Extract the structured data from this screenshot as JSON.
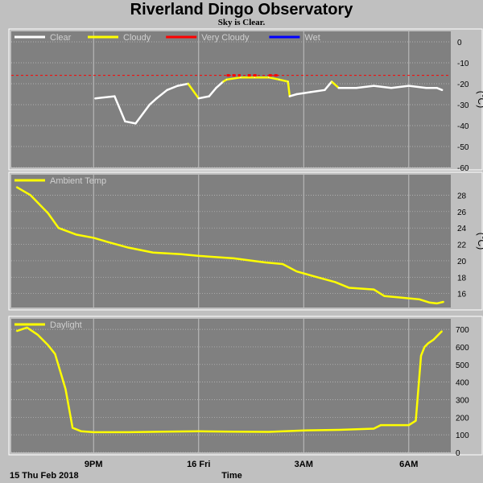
{
  "header": {
    "title": "Riverland Dingo Observatory",
    "subtitle": "Sky is Clear."
  },
  "footer": {
    "date_label": "15 Thu Feb 2018",
    "time_label": "Time"
  },
  "colors": {
    "background": "#c0c0c0",
    "plot_bg": "#808080",
    "grid": "#c0c0c0",
    "clear": "#ffffff",
    "cloudy": "#ffff00",
    "very_cloudy": "#ff0000",
    "wet": "#0000ff",
    "threshold": "#ff0000"
  },
  "chart_data": [
    {
      "type": "line",
      "title": "",
      "legend": [
        "Clear",
        "Cloudy",
        "Very Cloudy",
        "Wet"
      ],
      "legend_placement": "top-left",
      "ylabel": "(°C)",
      "ylim": [
        -60,
        5
      ],
      "yticks": [
        0,
        -10,
        -20,
        -30,
        -40,
        -50,
        -60
      ],
      "xticks": [
        "9PM",
        "16 Fri",
        "3AM",
        "6AM"
      ],
      "x_hours": [
        -2.95,
        -2.4,
        -2.1,
        -1.8,
        -1.4,
        -1.2,
        -0.9,
        -0.6,
        -0.3,
        0.0,
        0.3,
        0.5,
        0.7,
        0.8,
        1.2,
        1.6,
        2.0,
        2.3,
        2.55,
        2.6,
        2.8,
        3.2,
        3.6,
        3.8,
        4.0,
        4.5,
        5.0,
        5.5,
        6.0,
        6.5,
        6.8,
        6.95
      ],
      "values": [
        -27,
        -26,
        -38,
        -39,
        -30,
        -27,
        -23,
        -21,
        -20,
        -27,
        -26,
        -22,
        -19,
        -18,
        -17,
        -17,
        -17,
        -18,
        -19,
        -26,
        -25,
        -24,
        -23,
        -19,
        -22,
        -22,
        -21,
        -22,
        -21,
        -22,
        -22,
        -23
      ],
      "condition": [
        "clear",
        "clear",
        "clear",
        "clear",
        "clear",
        "clear",
        "clear",
        "clear",
        "cloudy",
        "clear",
        "clear",
        "clear",
        "cloudy",
        "cloudy",
        "cloudy",
        "cloudy",
        "cloudy",
        "cloudy",
        "cloudy",
        "clear",
        "clear",
        "clear",
        "clear",
        "cloudy",
        "clear",
        "clear",
        "clear",
        "clear",
        "clear",
        "clear",
        "clear",
        "clear"
      ],
      "very_cloudy_hours": [
        [
          0.8,
          1.2
        ],
        [
          1.4,
          1.7
        ],
        [
          2.0,
          2.3
        ]
      ],
      "threshold": -16,
      "grid": true
    },
    {
      "type": "line",
      "title": "",
      "legend": [
        "Ambient Temp"
      ],
      "legend_placement": "top-left",
      "ylabel": "(°C)",
      "ylim": [
        14.3,
        30.5
      ],
      "yticks": [
        16,
        18,
        20,
        22,
        24,
        26,
        28
      ],
      "xticks": [
        "9PM",
        "16 Fri",
        "3AM",
        "6AM"
      ],
      "x_hours": [
        -5.2,
        -4.8,
        -4.3,
        -4.0,
        -3.5,
        -3.0,
        -2.6,
        -2.0,
        -1.3,
        -0.5,
        0.0,
        1.0,
        1.9,
        2.4,
        2.8,
        3.3,
        3.9,
        4.3,
        5.0,
        5.3,
        5.8,
        6.3,
        6.6,
        6.8,
        7.0
      ],
      "values": [
        29.0,
        28.0,
        25.8,
        24.0,
        23.2,
        22.8,
        22.3,
        21.6,
        21.0,
        20.8,
        20.6,
        20.3,
        19.8,
        19.6,
        18.7,
        18.1,
        17.4,
        16.7,
        16.5,
        15.7,
        15.5,
        15.3,
        14.9,
        14.8,
        15.0
      ],
      "grid": true
    },
    {
      "type": "line",
      "title": "",
      "legend": [
        "Daylight"
      ],
      "legend_placement": "top-left",
      "ylabel": "",
      "ylim": [
        0,
        760
      ],
      "yticks": [
        0,
        100,
        200,
        300,
        400,
        500,
        600,
        700
      ],
      "xticks": [
        "9PM",
        "16 Fri",
        "3AM",
        "6AM"
      ],
      "x_hours": [
        -5.2,
        -4.9,
        -4.6,
        -4.3,
        -4.1,
        -3.8,
        -3.6,
        -3.35,
        -3.0,
        -2.0,
        -1.0,
        0.0,
        1.0,
        2.0,
        3.0,
        4.0,
        5.0,
        5.2,
        6.0,
        6.2,
        6.35,
        6.45,
        6.55,
        6.7,
        6.95
      ],
      "values": [
        690,
        710,
        670,
        610,
        560,
        360,
        140,
        120,
        115,
        115,
        118,
        120,
        118,
        117,
        125,
        128,
        135,
        155,
        155,
        180,
        550,
        600,
        620,
        640,
        690
      ],
      "grid": true
    }
  ]
}
